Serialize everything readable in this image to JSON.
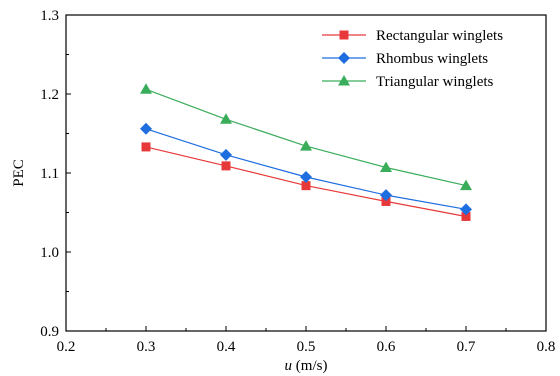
{
  "chart_data": {
    "type": "line",
    "x": [
      0.3,
      0.4,
      0.5,
      0.6,
      0.7
    ],
    "xlim": [
      0.2,
      0.8
    ],
    "ylim": [
      0.9,
      1.3
    ],
    "xticks": [
      "0.2",
      "0.3",
      "0.4",
      "0.5",
      "0.6",
      "0.7",
      "0.8"
    ],
    "yticks": [
      "0.9",
      "1.0",
      "1.1",
      "1.2",
      "1.3"
    ],
    "xlabel_var": "u",
    "xlabel_unit": " (m/s)",
    "ylabel": "PEC",
    "grid": false,
    "legend_position": "top-right",
    "series": [
      {
        "name": "Rectangular winglets",
        "values": [
          1.133,
          1.109,
          1.084,
          1.064,
          1.045
        ],
        "color": "#e8393a",
        "marker": "square"
      },
      {
        "name": "Rhombus winglets",
        "values": [
          1.156,
          1.123,
          1.095,
          1.072,
          1.054
        ],
        "color": "#1f6ee0",
        "marker": "diamond"
      },
      {
        "name": "Triangular winglets",
        "values": [
          1.206,
          1.168,
          1.134,
          1.107,
          1.084
        ],
        "color": "#3aad5a",
        "marker": "triangle"
      }
    ]
  }
}
